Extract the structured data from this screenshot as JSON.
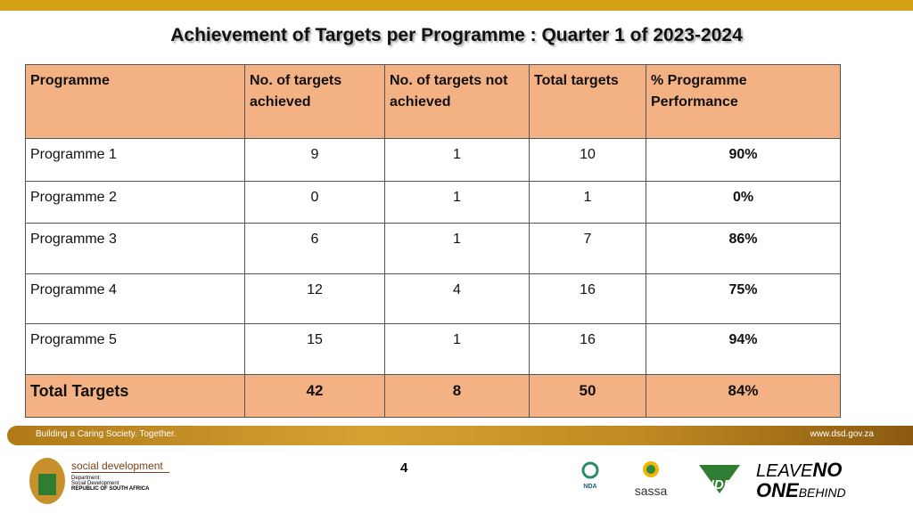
{
  "header": {
    "title": "Achievement of Targets per Programme : Quarter 1 of 2023-2024"
  },
  "table": {
    "columns": [
      "Programme",
      "No. of targets achieved",
      "No. of targets not achieved",
      "Total targets",
      "% Programme Performance"
    ],
    "rows": [
      [
        "Programme 1",
        "9",
        "1",
        "10",
        "90%"
      ],
      [
        "Programme 2",
        "0",
        "1",
        "1",
        "0%"
      ],
      [
        "Programme 3",
        "6",
        "1",
        "7",
        "86%"
      ],
      [
        "Programme 4",
        "12",
        "4",
        "16",
        "75%"
      ],
      [
        "Programme 5",
        "15",
        "1",
        "16",
        "94%"
      ],
      [
        "Total Targets",
        "42",
        "8",
        "50",
        "84%"
      ]
    ]
  },
  "footer": {
    "slogan": "Building a Caring Society. Together.",
    "website": "www.dsd.gov.za",
    "page_number": "4",
    "logo_text": [
      "social development",
      "Department:",
      "Social Development",
      "REPUBLIC OF SOUTH AFRICA"
    ],
    "partners": [
      "NDA",
      "sassa",
      "NDP",
      "LEAVE",
      "NO",
      "ONE",
      "BEHIND"
    ]
  }
}
